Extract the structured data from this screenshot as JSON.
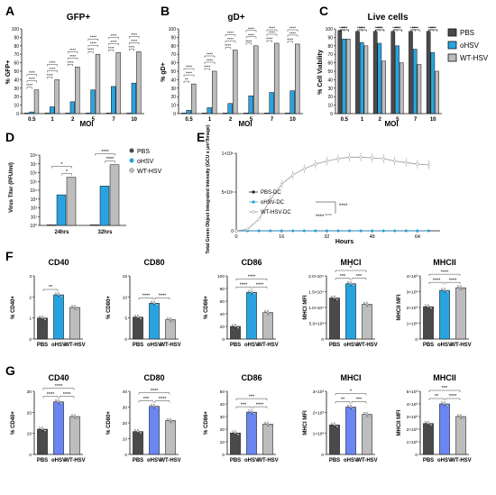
{
  "colors": {
    "pbs": "#4a4a4a",
    "ohsv": "#29a3e0",
    "wt": "#bdbdbd",
    "blue_g": "#6b86f0",
    "ink": "#111111"
  },
  "legend_top": [
    "PBS",
    "oHSV",
    "WT-HSV"
  ],
  "legend_d": [
    "PBS",
    "oHSV",
    "WT-HSV"
  ],
  "panels": {
    "A": {
      "letter": "A",
      "title": "GFP+",
      "ylabel": "% GFP+",
      "xlabel": "MOI"
    },
    "B": {
      "letter": "B",
      "title": "gD+",
      "ylabel": "% gD+",
      "xlabel": "MOI"
    },
    "C": {
      "letter": "C",
      "title": "Live cells",
      "ylabel": "% Cell Viability",
      "xlabel": "MOI"
    },
    "D": {
      "letter": "D",
      "ylabel": "Virus Titer (PFU/ml)"
    },
    "E": {
      "letter": "E",
      "ylabel": "Total Green Object Integrated Intensity (GCU x µm²/Image)",
      "xlabel": "Hours"
    },
    "F": {
      "letter": "F"
    },
    "G": {
      "letter": "G"
    }
  },
  "chart_data": [
    {
      "id": "A",
      "type": "bar",
      "title": "GFP+",
      "xlabel": "MOI",
      "ylabel": "% GFP+",
      "ylim": [
        0,
        100
      ],
      "yticks": [
        0,
        10,
        20,
        30,
        40,
        50,
        60,
        70,
        80,
        90,
        100
      ],
      "categories": [
        "0.5",
        "1",
        "2",
        "5",
        "7",
        "10"
      ],
      "series": [
        {
          "name": "PBS",
          "values": [
            0,
            0,
            0,
            0,
            0,
            0
          ]
        },
        {
          "name": "oHSV",
          "values": [
            2,
            8,
            14,
            28,
            32,
            36
          ]
        },
        {
          "name": "WT-HSV",
          "values": [
            28,
            40,
            55,
            70,
            72,
            73
          ]
        }
      ],
      "significance": [
        "****",
        "****",
        "****",
        "****",
        "****",
        "****",
        "****",
        "****",
        "****",
        "****",
        "****",
        "****",
        "****",
        "****",
        "****",
        "****",
        "****",
        "****"
      ]
    },
    {
      "id": "B",
      "type": "bar",
      "title": "gD+",
      "xlabel": "MOI",
      "ylabel": "% gD+",
      "ylim": [
        0,
        100
      ],
      "yticks": [
        0,
        10,
        20,
        30,
        40,
        50,
        60,
        70,
        80,
        90,
        100
      ],
      "categories": [
        "0.5",
        "1",
        "2",
        "5",
        "7",
        "10"
      ],
      "series": [
        {
          "name": "PBS",
          "values": [
            0,
            0,
            0,
            0,
            0,
            0
          ]
        },
        {
          "name": "oHSV",
          "values": [
            4,
            7,
            12,
            21,
            25,
            27
          ]
        },
        {
          "name": "WT-HSV",
          "values": [
            35,
            50,
            75,
            80,
            83,
            82
          ]
        }
      ],
      "significance": [
        "**",
        "****",
        "****",
        "****",
        "****",
        "****",
        "****",
        "****",
        "****",
        "****",
        "****",
        "****",
        "****",
        "****",
        "****",
        "****",
        "****",
        "****"
      ]
    },
    {
      "id": "C",
      "type": "bar",
      "title": "Live cells",
      "xlabel": "MOI",
      "ylabel": "% Cell Viability",
      "ylim": [
        0,
        100
      ],
      "yticks": [
        0,
        10,
        20,
        30,
        40,
        50,
        60,
        70,
        80,
        90,
        100
      ],
      "categories": [
        "0.5",
        "1",
        "2",
        "5",
        "7",
        "10"
      ],
      "series": [
        {
          "name": "PBS",
          "values": [
            98,
            97,
            97,
            97,
            97,
            97
          ]
        },
        {
          "name": "oHSV",
          "values": [
            88,
            84,
            83,
            80,
            76,
            72
          ]
        },
        {
          "name": "WT-HSV",
          "values": [
            88,
            80,
            62,
            60,
            58,
            50
          ]
        }
      ],
      "significance": [
        "****",
        "****",
        "****",
        "****",
        "****",
        "****",
        "****",
        "****",
        "****",
        "****",
        "****",
        "****",
        "****",
        "****",
        "****",
        "****",
        "****",
        "****"
      ]
    },
    {
      "id": "D",
      "type": "bar",
      "ylabel": "Virus Titer (PFU/ml)",
      "yscale": "log",
      "ylim": [
        1,
        100000000
      ],
      "yticklabels": [
        "10⁰",
        "10¹",
        "10²",
        "10³",
        "10⁴",
        "10⁵",
        "10⁶",
        "10⁷",
        "10⁸"
      ],
      "categories": [
        "24hrs",
        "32hrs"
      ],
      "series": [
        {
          "name": "PBS",
          "values": [
            1,
            1
          ]
        },
        {
          "name": "oHSV",
          "values": [
            3000,
            30000
          ]
        },
        {
          "name": "WT-HSV",
          "values": [
            300000,
            8000000
          ]
        }
      ],
      "significance": [
        "*",
        "*",
        "****",
        "****"
      ]
    },
    {
      "id": "E",
      "type": "line",
      "xlabel": "Hours",
      "ylabel": "Total Green Object Integrated Intensity (GCU x µm²/Image)",
      "xlim": [
        0,
        72
      ],
      "ylim": [
        0,
        1000000
      ],
      "xticks": [
        0,
        16,
        32,
        48,
        64
      ],
      "yticklabels": [
        "0",
        "5×10⁵",
        "1×10⁶"
      ],
      "x": [
        0,
        4,
        8,
        12,
        16,
        20,
        24,
        28,
        32,
        36,
        40,
        44,
        48,
        52,
        56,
        60,
        64,
        68
      ],
      "series": [
        {
          "name": "PBS-DC",
          "values": [
            0,
            0,
            0,
            0,
            0,
            0,
            0,
            0,
            0,
            0,
            0,
            0,
            0,
            0,
            0,
            0,
            0,
            0
          ]
        },
        {
          "name": "oHSV-DC",
          "values": [
            0,
            0,
            0,
            0,
            0,
            0,
            0,
            0,
            0,
            0,
            0,
            0,
            0,
            0,
            0,
            0,
            0,
            0
          ]
        },
        {
          "name": "WT-HSV-DC",
          "values": [
            0,
            20000,
            150000,
            400000,
            600000,
            720000,
            800000,
            860000,
            900000,
            930000,
            950000,
            950000,
            940000,
            930000,
            900000,
            880000,
            860000,
            850000
          ]
        }
      ],
      "significance": [
        "****",
        "****"
      ]
    },
    {
      "id": "F1",
      "type": "bar",
      "title": "CD40",
      "ylabel": "% CD40+",
      "ylim": [
        0,
        3
      ],
      "yticks": [
        0,
        1,
        2,
        3
      ],
      "categories": [
        "PBS",
        "oHSV",
        "WT-HSV"
      ],
      "values": [
        1.0,
        2.1,
        1.5
      ],
      "significance": [
        "**"
      ]
    },
    {
      "id": "F2",
      "type": "bar",
      "title": "CD80",
      "ylabel": "% CD80+",
      "ylim": [
        0,
        15
      ],
      "yticks": [
        0,
        5,
        10,
        15
      ],
      "categories": [
        "PBS",
        "oHSV",
        "WT-HSV"
      ],
      "values": [
        5.2,
        8.5,
        4.6
      ],
      "significance": [
        "****",
        "****"
      ]
    },
    {
      "id": "F3",
      "type": "bar",
      "title": "CD86",
      "ylabel": "% CD86+",
      "ylim": [
        0,
        100
      ],
      "yticks": [
        0,
        20,
        40,
        60,
        80,
        100
      ],
      "categories": [
        "PBS",
        "oHSV",
        "WT-HSV"
      ],
      "values": [
        20,
        74,
        42
      ],
      "significance": [
        "****",
        "****",
        "****"
      ]
    },
    {
      "id": "F4",
      "type": "bar",
      "title": "MHCI",
      "ylabel": "MHCI MFI",
      "ylim": [
        0,
        20000
      ],
      "yticks": [
        0,
        5000,
        10000,
        15000,
        20000
      ],
      "yticklabels": [
        "0",
        "5.0×10³",
        "1.0×10⁴",
        "1.5×10⁴",
        "2.0×10⁴"
      ],
      "categories": [
        "PBS",
        "oHSV",
        "WT-HSV"
      ],
      "values": [
        13000,
        17500,
        11000
      ],
      "significance": [
        "***",
        "***",
        "*"
      ]
    },
    {
      "id": "F5",
      "type": "bar",
      "title": "MHCII",
      "ylabel": "MHCII MFI",
      "ylim": [
        0,
        4000
      ],
      "yticks": [
        0,
        1000,
        2000,
        3000,
        4000
      ],
      "yticklabels": [
        "0",
        "1×10³",
        "2×10³",
        "3×10³",
        "4×10³"
      ],
      "categories": [
        "PBS",
        "oHSV",
        "WT-HSV"
      ],
      "values": [
        2050,
        3080,
        3250
      ],
      "significance": [
        "****",
        "****",
        "****"
      ]
    },
    {
      "id": "G1",
      "type": "bar",
      "title": "CD40",
      "ylabel": "% CD40+",
      "ylim": [
        0,
        30
      ],
      "yticks": [
        0,
        10,
        20,
        30
      ],
      "categories": [
        "PBS",
        "oHSV",
        "WT-HSV"
      ],
      "values": [
        12,
        25,
        18
      ],
      "significance": [
        "****",
        "****",
        "****"
      ]
    },
    {
      "id": "G2",
      "type": "bar",
      "title": "CD80",
      "ylabel": "% CD80+",
      "ylim": [
        0,
        40
      ],
      "yticks": [
        0,
        10,
        20,
        30,
        40
      ],
      "categories": [
        "PBS",
        "oHSV",
        "WT-HSV"
      ],
      "values": [
        14.5,
        30.5,
        21.5
      ],
      "significance": [
        "***",
        "****",
        "****"
      ]
    },
    {
      "id": "G3",
      "type": "bar",
      "title": "CD86",
      "ylabel": "% CD86+",
      "ylim": [
        0,
        50
      ],
      "yticks": [
        0,
        10,
        20,
        30,
        40,
        50
      ],
      "categories": [
        "PBS",
        "oHSV",
        "WT-HSV"
      ],
      "values": [
        17,
        33.5,
        24
      ],
      "significance": [
        "***",
        "****",
        "***"
      ]
    },
    {
      "id": "G4",
      "type": "bar",
      "title": "MHCI",
      "ylabel": "MHCI MFI",
      "ylim": [
        0,
        3000
      ],
      "yticks": [
        0,
        1000,
        2000,
        3000
      ],
      "yticklabels": [
        "0",
        "1×10³",
        "2×10³",
        "3×10³"
      ],
      "categories": [
        "PBS",
        "oHSV",
        "WT-HSV"
      ],
      "values": [
        1400,
        2250,
        1900
      ],
      "significance": [
        "**",
        "***",
        "*"
      ]
    },
    {
      "id": "G5",
      "type": "bar",
      "title": "MHCII",
      "ylabel": "MHCII MFI",
      "ylim": [
        0,
        5000
      ],
      "yticks": [
        0,
        1000,
        2000,
        3000,
        4000,
        5000
      ],
      "yticklabels": [
        "0",
        "1×10³",
        "2×10³",
        "3×10³",
        "4×10³",
        "5×10³"
      ],
      "categories": [
        "PBS",
        "oHSV",
        "WT-HSV"
      ],
      "values": [
        2450,
        4000,
        3000
      ],
      "significance": [
        "**",
        "****",
        "***"
      ]
    }
  ]
}
